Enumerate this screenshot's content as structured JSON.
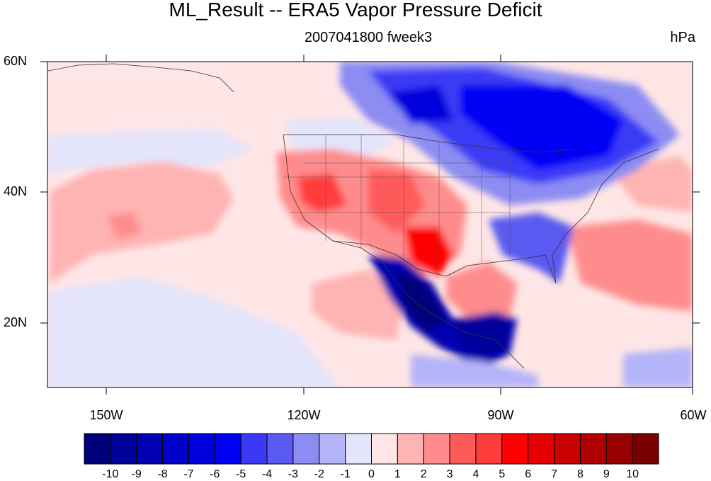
{
  "title": "ML_Result -- ERA5 Vapor Pressure Deficit",
  "subtitle": "2007041800 fweek3",
  "units": "hPa",
  "map": {
    "lat_labels": [
      "60N",
      "40N",
      "20N"
    ],
    "lon_labels": [
      "150W",
      "120W",
      "90W",
      "60W"
    ],
    "lat_values": [
      60,
      40,
      20
    ],
    "lon_values": [
      -150,
      -120,
      -90,
      -60
    ],
    "extent": {
      "lon_min": -159,
      "lon_max": -60,
      "lat_min": 10,
      "lat_max": 60
    }
  },
  "colorbar": {
    "labels": [
      "-10",
      "-9",
      "-8",
      "-7",
      "-6",
      "-5",
      "-4",
      "-3",
      "-2",
      "-1",
      "0",
      "1",
      "2",
      "3",
      "4",
      "5",
      "6",
      "7",
      "8",
      "9",
      "10"
    ],
    "colors": [
      "#00007a",
      "#00009a",
      "#0000b0",
      "#0000c8",
      "#0000dc",
      "#0000f5",
      "#3a3af5",
      "#5a5af0",
      "#8c8cf2",
      "#b4b4f8",
      "#e4e4fa",
      "#ffe6e6",
      "#ffb4b4",
      "#ff8c8c",
      "#ff5a5a",
      "#ff3c3c",
      "#ff0000",
      "#e60000",
      "#c80000",
      "#af0000",
      "#960000",
      "#7a0000"
    ]
  }
}
